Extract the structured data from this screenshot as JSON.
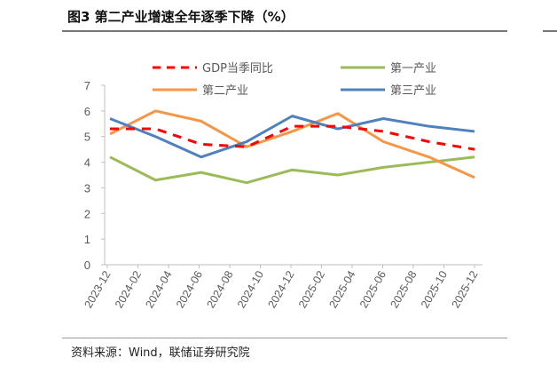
{
  "title": "图3  第二产业增速全年逐季下降（%）",
  "source": "资料来源：Wind，联储证券研究院",
  "chart_data": {
    "type": "line",
    "title": "图3  第二产业增速全年逐季下降（%）",
    "xlabel": "",
    "ylabel": "",
    "ylim": [
      0,
      7
    ],
    "yticks": [
      0,
      1,
      2,
      3,
      4,
      5,
      6,
      7
    ],
    "xtick_labels": [
      "2023-12",
      "2024-02",
      "2024-04",
      "2024-06",
      "2024-08",
      "2024-10",
      "2024-12",
      "2025-02",
      "2025-04",
      "2025-06",
      "2025-08",
      "2025-10",
      "2025-12"
    ],
    "x": [
      "2023-12",
      "2024-03",
      "2024-06",
      "2024-09",
      "2024-12",
      "2025-03",
      "2025-06",
      "2025-09",
      "2025-12"
    ],
    "grid": false,
    "legend": "top",
    "series": [
      {
        "name": "GDP当季同比",
        "color": "#ff0000",
        "dashed": true,
        "values": [
          5.3,
          5.3,
          4.7,
          4.6,
          5.4,
          5.4,
          5.2,
          4.8,
          4.5
        ]
      },
      {
        "name": "第一产业",
        "color": "#9bbb59",
        "dashed": false,
        "values": [
          4.2,
          3.3,
          3.6,
          3.2,
          3.7,
          3.5,
          3.8,
          4.0,
          4.2
        ]
      },
      {
        "name": "第二产业",
        "color": "#f79646",
        "dashed": false,
        "values": [
          5.1,
          6.0,
          5.6,
          4.6,
          5.2,
          5.9,
          4.8,
          4.2,
          3.4
        ]
      },
      {
        "name": "第三产业",
        "color": "#4f81bd",
        "dashed": false,
        "values": [
          5.7,
          5.0,
          4.2,
          4.8,
          5.8,
          5.3,
          5.7,
          5.4,
          5.2
        ]
      }
    ]
  }
}
